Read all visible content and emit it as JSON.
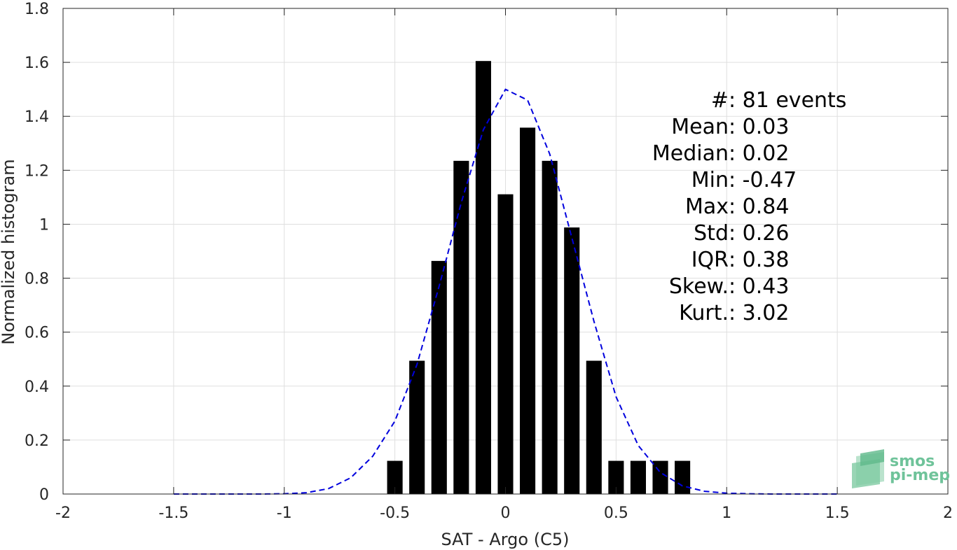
{
  "chart_data": {
    "type": "bar",
    "xlabel": "SAT - Argo (C5)",
    "ylabel": "Normalized histogram",
    "xlim": [
      -2,
      2
    ],
    "ylim": [
      0,
      1.8
    ],
    "x_ticks": [
      -2,
      -1.5,
      -1,
      -0.5,
      0,
      0.5,
      1,
      1.5,
      2
    ],
    "x_tick_labels": [
      "-2",
      "-1.5",
      "-1",
      "-0.5",
      "0",
      "0.5",
      "1",
      "1.5",
      "2"
    ],
    "y_ticks": [
      0,
      0.2,
      0.4,
      0.6,
      0.8,
      1,
      1.2,
      1.4,
      1.6,
      1.8
    ],
    "y_tick_labels": [
      "0",
      "0.2",
      "0.4",
      "0.6",
      "0.8",
      "1",
      "1.2",
      "1.4",
      "1.6",
      "1.8"
    ],
    "grid": true,
    "bar_width": 0.07,
    "bar_color": "#000000",
    "bins": [
      {
        "x": -0.5,
        "value": 0.123
      },
      {
        "x": -0.4,
        "value": 0.494
      },
      {
        "x": -0.3,
        "value": 0.864
      },
      {
        "x": -0.2,
        "value": 1.235
      },
      {
        "x": -0.1,
        "value": 1.605
      },
      {
        "x": 0.0,
        "value": 1.111
      },
      {
        "x": 0.1,
        "value": 1.358
      },
      {
        "x": 0.2,
        "value": 1.235
      },
      {
        "x": 0.3,
        "value": 0.988
      },
      {
        "x": 0.4,
        "value": 0.494
      },
      {
        "x": 0.5,
        "value": 0.123
      },
      {
        "x": 0.6,
        "value": 0.123
      },
      {
        "x": 0.7,
        "value": 0.123
      },
      {
        "x": 0.8,
        "value": 0.123
      }
    ],
    "fit_curve": {
      "style": "dashed",
      "color": "#0000dd",
      "x": [
        -1.5,
        -1.4,
        -1.3,
        -1.2,
        -1.1,
        -1.0,
        -0.9,
        -0.8,
        -0.7,
        -0.6,
        -0.5,
        -0.4,
        -0.3,
        -0.2,
        -0.1,
        0.0,
        0.1,
        0.2,
        0.3,
        0.4,
        0.5,
        0.6,
        0.7,
        0.8,
        0.9,
        1.0,
        1.1,
        1.2,
        1.3,
        1.4,
        1.5
      ],
      "y": [
        0.0,
        0.0,
        0.0,
        0.0,
        0.0,
        0.001,
        0.005,
        0.02,
        0.06,
        0.14,
        0.27,
        0.48,
        0.77,
        1.08,
        1.35,
        1.5,
        1.46,
        1.26,
        0.95,
        0.64,
        0.36,
        0.18,
        0.08,
        0.03,
        0.01,
        0.003,
        0.001,
        0.0,
        0.0,
        0.0,
        0.0
      ]
    },
    "stats": [
      {
        "name": "#",
        "sep": " : ",
        "value": "81 events"
      },
      {
        "name": "Mean",
        "sep": " : ",
        "value": "0.03"
      },
      {
        "name": "Median",
        "sep": " : ",
        "value": "0.02"
      },
      {
        "name": "Min",
        "sep": " : ",
        "value": "-0.47"
      },
      {
        "name": "Max",
        "sep": " : ",
        "value": "0.84"
      },
      {
        "name": "Std",
        "sep": " : ",
        "value": "0.26"
      },
      {
        "name": "IQR",
        "sep": " : ",
        "value": "0.38"
      },
      {
        "name": "Skew.",
        "sep": " : ",
        "value": "0.43"
      },
      {
        "name": "Kurt.",
        "sep": " : ",
        "value": "3.02"
      }
    ]
  },
  "logo": {
    "line1": "smos",
    "line2": "pi-mep",
    "color": "#6fc39a"
  }
}
